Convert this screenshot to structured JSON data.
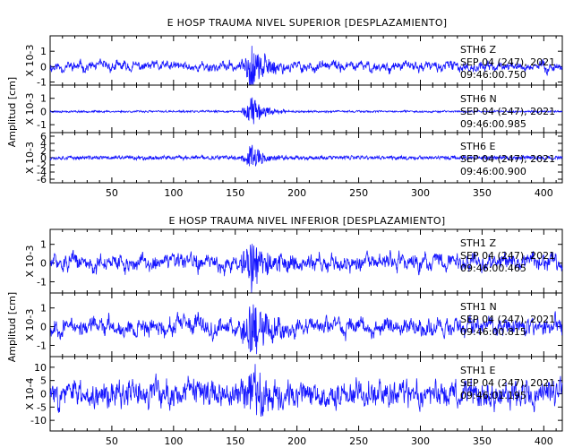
{
  "chart_data": [
    {
      "type": "line",
      "title": "E HOSP TRAUMA NIVEL SUPERIOR [DESPLAZAMIENTO]",
      "ylabel": "Amplitud [cm]",
      "xlim": [
        0,
        415
      ],
      "x_ticks": [
        50,
        100,
        150,
        200,
        250,
        300,
        350,
        400
      ],
      "series": [
        {
          "name": "STH6   Z",
          "date": "SEP 04 (247), 2021",
          "time": "09:46:00.750",
          "scale": "X 10-3",
          "ylim": [
            -1.2,
            2
          ],
          "y_ticks": [
            -1,
            0,
            1
          ],
          "amplitude": 0.35,
          "burst": 1.5,
          "seed": 11,
          "smooth": 0.78
        },
        {
          "name": "STH6   N",
          "date": "SEP 04 (247), 2021",
          "time": "09:46:00.985",
          "scale": "X 10-3",
          "ylim": [
            -1.6,
            2
          ],
          "y_ticks": [
            -1,
            0,
            1
          ],
          "amplitude": 0.04,
          "burst": 1.3,
          "seed": 23,
          "smooth": 0.3
        },
        {
          "name": "STH6   E",
          "date": "SEP 04 (247), 2021",
          "time": "09:46:00.900",
          "scale": "X 10-3",
          "ylim": [
            -7,
            7
          ],
          "y_ticks": [
            -6,
            -4,
            -2,
            0,
            2,
            4,
            6
          ],
          "amplitude": 0.3,
          "burst": 4.5,
          "seed": 37,
          "smooth": 0.3
        }
      ]
    },
    {
      "type": "line",
      "title": "E HOSP TRAUMA NIVEL INFERIOR [DESPLAZAMIENTO]",
      "ylabel": "Amplitud [cm]",
      "xlim": [
        0,
        415
      ],
      "x_ticks": [
        50,
        100,
        150,
        200,
        250,
        300,
        350,
        400
      ],
      "series": [
        {
          "name": "STH1   Z",
          "date": "SEP 04 (247), 2021",
          "time": "09:46:00.465",
          "scale": "X 10-3",
          "ylim": [
            -1.6,
            1.8
          ],
          "y_ticks": [
            -1,
            0,
            1
          ],
          "amplitude": 0.5,
          "burst": 1.5,
          "seed": 51,
          "smooth": 0.8
        },
        {
          "name": "STH1   N",
          "date": "SEP 04 (247), 2021",
          "time": "09:46:00.815",
          "scale": "X 10-3",
          "ylim": [
            -1.6,
            1.8
          ],
          "y_ticks": [
            -1,
            0,
            1
          ],
          "amplitude": 0.5,
          "burst": 1.5,
          "seed": 67,
          "smooth": 0.78
        },
        {
          "name": "STH1   E",
          "date": "SEP 04 (247), 2021",
          "time": "09:46:01.195",
          "scale": "X 10-4",
          "ylim": [
            -14,
            14
          ],
          "y_ticks": [
            -10,
            -5,
            0,
            5,
            10
          ],
          "amplitude": 3.5,
          "burst": 10,
          "seed": 83,
          "smooth": 0.55
        }
      ]
    }
  ]
}
